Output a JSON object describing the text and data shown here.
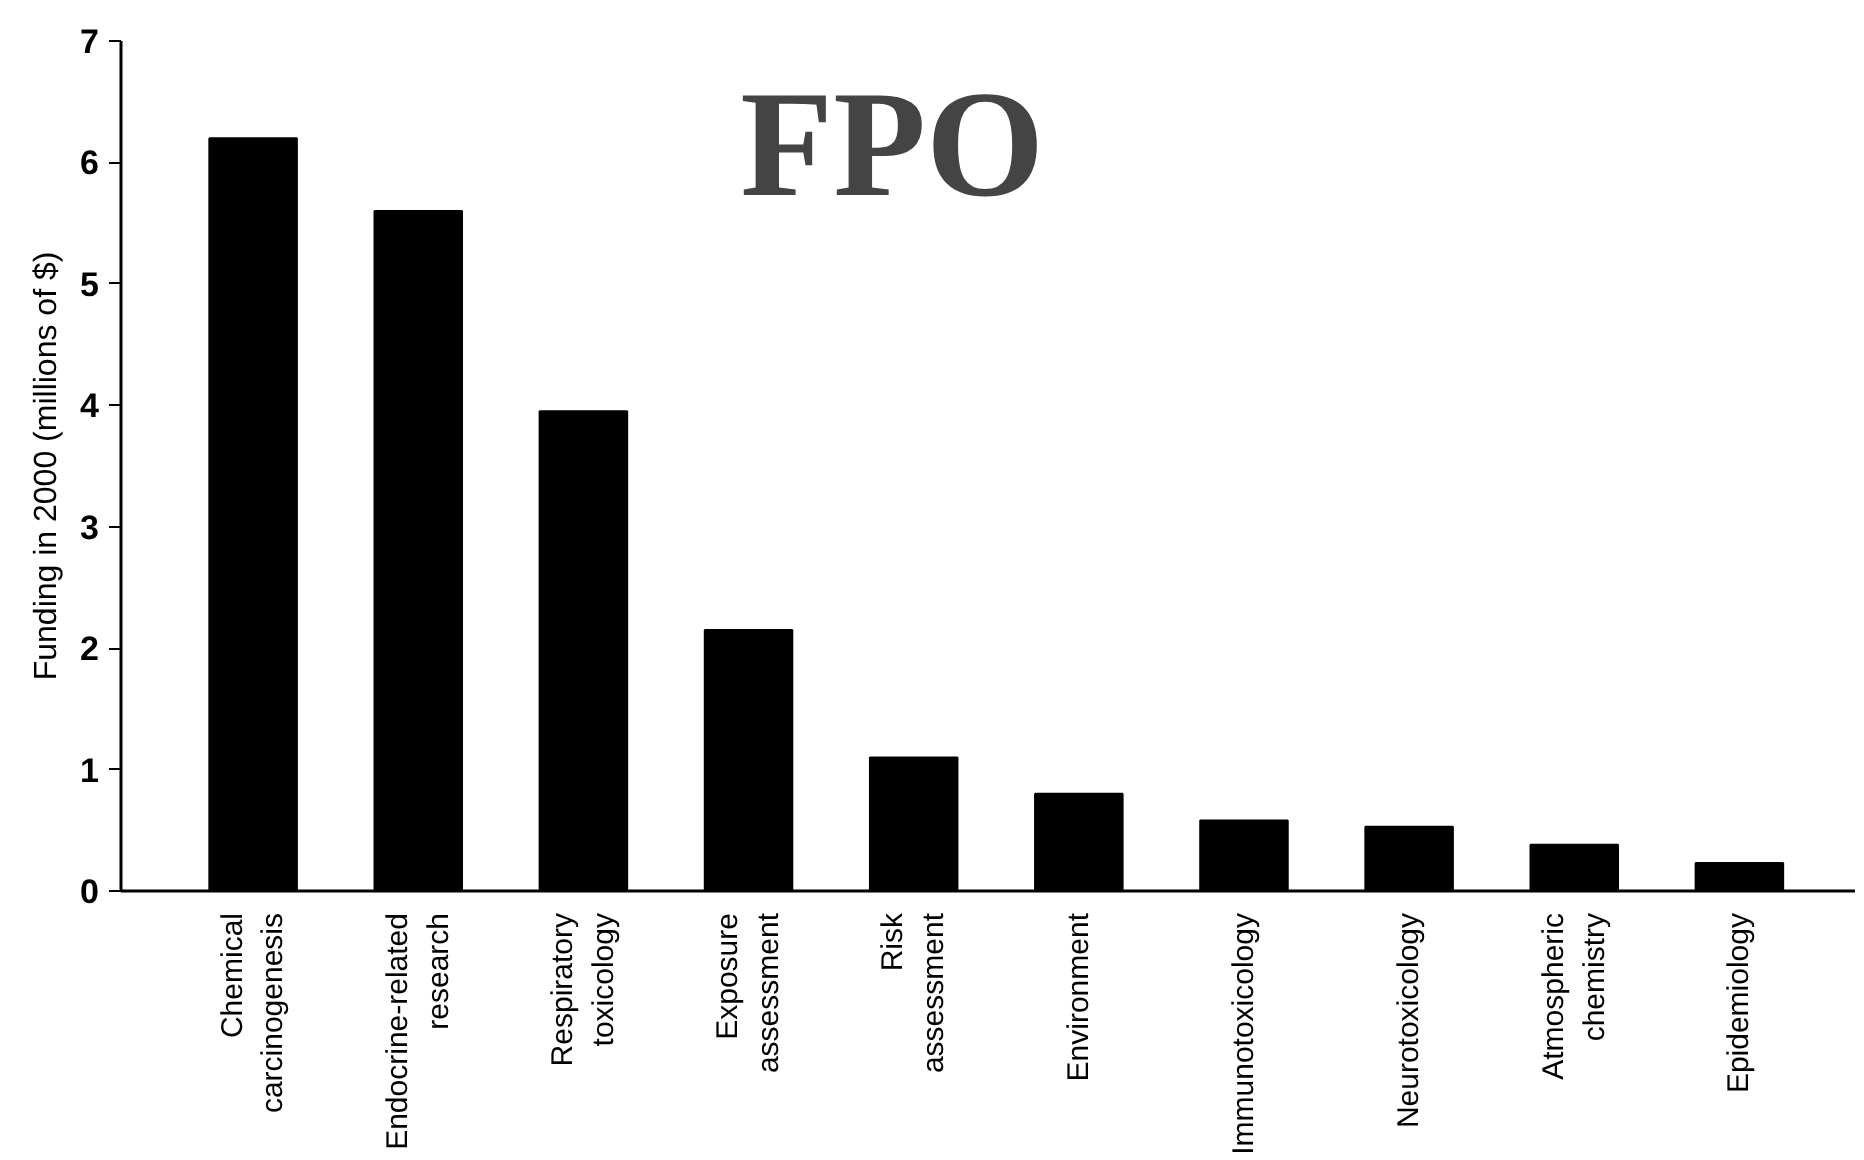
{
  "chart_data": {
    "type": "bar",
    "ylabel": "Funding in 2000 (millions of $)",
    "categories": [
      "Chemical\ncarcinogenesis",
      "Endocrine-related\nresearch",
      "Respiratory\ntoxicology",
      "Exposure\nassessment",
      "Risk\nassessment",
      "Environment",
      "Immunotoxicology",
      "Neurotoxicology",
      "Atmospheric\nchemistry",
      "Epidemiology"
    ],
    "values": [
      6.2,
      5.6,
      3.95,
      2.15,
      1.1,
      0.8,
      0.58,
      0.53,
      0.38,
      0.23
    ],
    "color": "#000000",
    "ylim": [
      0,
      7
    ],
    "yticks": [
      0,
      1,
      2,
      3,
      4,
      5,
      6,
      7
    ],
    "grid": false,
    "annotations": [
      "FPO"
    ]
  }
}
